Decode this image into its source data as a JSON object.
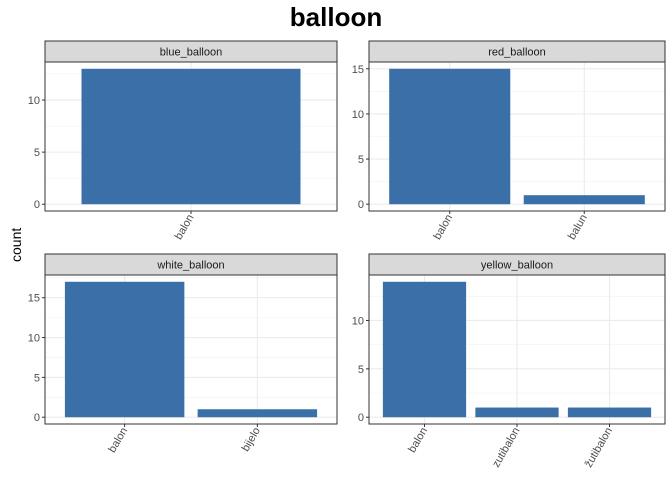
{
  "chart_data": {
    "type": "bar",
    "title": "balloon",
    "ylabel": "count",
    "xlabel": "",
    "bar_color": "#3a6fa8",
    "panels": [
      {
        "name": "blue_balloon",
        "categories": [
          "balon"
        ],
        "values": [
          13
        ],
        "ylim": [
          -0.65,
          13.65
        ],
        "yticks": [
          0,
          5,
          10
        ]
      },
      {
        "name": "red_balloon",
        "categories": [
          "balon",
          "balun"
        ],
        "values": [
          15,
          1
        ],
        "ylim": [
          -0.75,
          15.75
        ],
        "yticks": [
          0,
          5,
          10,
          15
        ]
      },
      {
        "name": "white_balloon",
        "categories": [
          "balon",
          "bijelo"
        ],
        "values": [
          17,
          1
        ],
        "ylim": [
          -0.85,
          17.85
        ],
        "yticks": [
          0,
          5,
          10,
          15
        ]
      },
      {
        "name": "yellow_balloon",
        "categories": [
          "balon",
          "zutibalon",
          "žutibalon"
        ],
        "values": [
          14,
          1,
          1
        ],
        "ylim": [
          -0.7,
          14.7
        ],
        "yticks": [
          0,
          5,
          10
        ]
      }
    ]
  }
}
